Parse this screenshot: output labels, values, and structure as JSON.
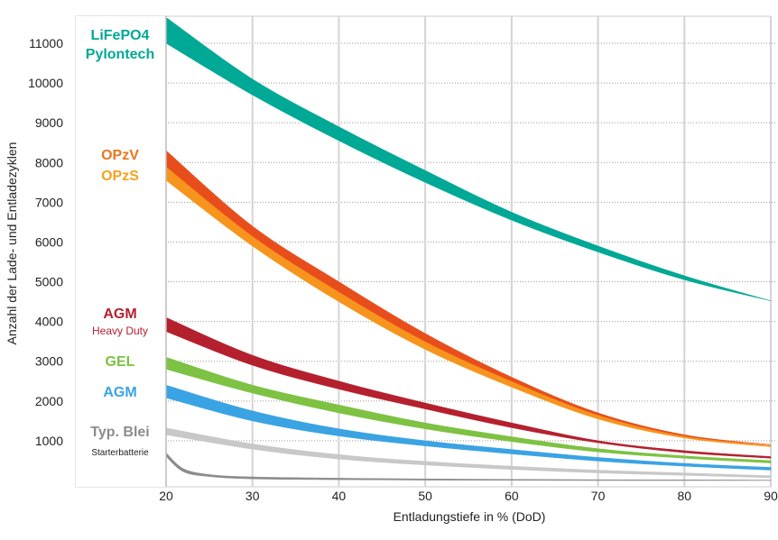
{
  "chart_data": {
    "type": "area",
    "xlabel": "Entladungstiefe in % (DoD)",
    "ylabel": "Anzahl der Lade- und Entladezyklen",
    "xlim": [
      10,
      90
    ],
    "ylim": [
      0,
      11500
    ],
    "xticks": [
      20,
      30,
      40,
      50,
      60,
      70,
      80,
      90
    ],
    "yticks": [
      1000,
      2000,
      3000,
      4000,
      5000,
      6000,
      7000,
      8000,
      9000,
      10000,
      11000
    ],
    "grid": "dotted horizontal, solid vertical",
    "legend": "left label column",
    "series": [
      {
        "name": "LiFePO4 Pylontech",
        "color": "#00a896",
        "x": [
          20,
          30,
          40,
          50,
          60,
          70,
          80,
          90
        ],
        "upper": [
          11650,
          10100,
          8900,
          7800,
          6750,
          5900,
          5150,
          4520
        ],
        "lower": [
          11000,
          9700,
          8550,
          7500,
          6550,
          5750,
          5050,
          4520
        ]
      },
      {
        "name": "OPzV",
        "color": "#e84e1c",
        "x": [
          20,
          30,
          40,
          50,
          60,
          70,
          80,
          90
        ],
        "upper": [
          8300,
          6400,
          5000,
          3700,
          2600,
          1700,
          1150,
          900
        ],
        "lower": [
          7900,
          6150,
          4750,
          3500,
          2500,
          1650,
          1120,
          900
        ]
      },
      {
        "name": "OPzS",
        "color": "#f7941d",
        "x": [
          20,
          30,
          40,
          50,
          60,
          70,
          80,
          90
        ],
        "upper": [
          8000,
          6200,
          4780,
          3530,
          2520,
          1660,
          1120,
          880
        ],
        "lower": [
          7550,
          5900,
          4500,
          3300,
          2350,
          1550,
          1070,
          850
        ]
      },
      {
        "name": "AGM Heavy Duty",
        "color": "#b5202e",
        "x": [
          20,
          30,
          40,
          50,
          60,
          70,
          80,
          90
        ],
        "upper": [
          4100,
          3150,
          2500,
          1950,
          1450,
          1000,
          750,
          600
        ],
        "lower": [
          3750,
          2900,
          2300,
          1800,
          1330,
          950,
          700,
          560
        ]
      },
      {
        "name": "GEL",
        "color": "#7dc242",
        "x": [
          20,
          30,
          40,
          50,
          60,
          70,
          80,
          90
        ],
        "upper": [
          3100,
          2400,
          1900,
          1450,
          1100,
          800,
          620,
          500
        ],
        "lower": [
          2800,
          2200,
          1700,
          1300,
          980,
          720,
          560,
          440
        ]
      },
      {
        "name": "AGM",
        "color": "#3aa3e3",
        "x": [
          20,
          30,
          40,
          50,
          60,
          70,
          80,
          90
        ],
        "upper": [
          2400,
          1750,
          1300,
          1000,
          780,
          580,
          430,
          330
        ],
        "lower": [
          2080,
          1500,
          1120,
          870,
          670,
          490,
          360,
          260
        ]
      },
      {
        "name": "Typ. Blei",
        "color": "#c8c8c8",
        "x": [
          20,
          30,
          40,
          50,
          60,
          70,
          80,
          90
        ],
        "upper": [
          1320,
          920,
          650,
          480,
          360,
          260,
          190,
          120
        ],
        "lower": [
          1150,
          790,
          540,
          390,
          280,
          190,
          130,
          70
        ]
      },
      {
        "name": "Starterbatterie",
        "color": "#8c8c8c",
        "x": [
          20,
          22,
          25,
          30,
          40,
          50,
          60,
          70,
          80,
          90
        ],
        "upper": [
          700,
          300,
          150,
          90,
          60,
          40,
          30,
          20,
          15,
          10
        ],
        "lower": [
          600,
          220,
          100,
          40,
          20,
          10,
          5,
          0,
          0,
          0
        ]
      }
    ]
  },
  "labels": {
    "lifepo4": "LiFePO4",
    "pylontech": "Pylontech",
    "opzv": "OPzV",
    "opzs": "OPzS",
    "agm_hd": "AGM",
    "heavy_duty": "Heavy Duty",
    "gel": "GEL",
    "agm": "AGM",
    "typ_blei": "Typ. Blei",
    "starter": "Starterbatterie"
  },
  "colors": {
    "lifepo4": "#00a896",
    "opzv": "#e84e1c",
    "opzs": "#f7941d",
    "agm_hd": "#b5202e",
    "gel": "#7dc242",
    "agm": "#3aa3e3",
    "typ_blei": "#8c8c8c",
    "starter": "#222222"
  }
}
